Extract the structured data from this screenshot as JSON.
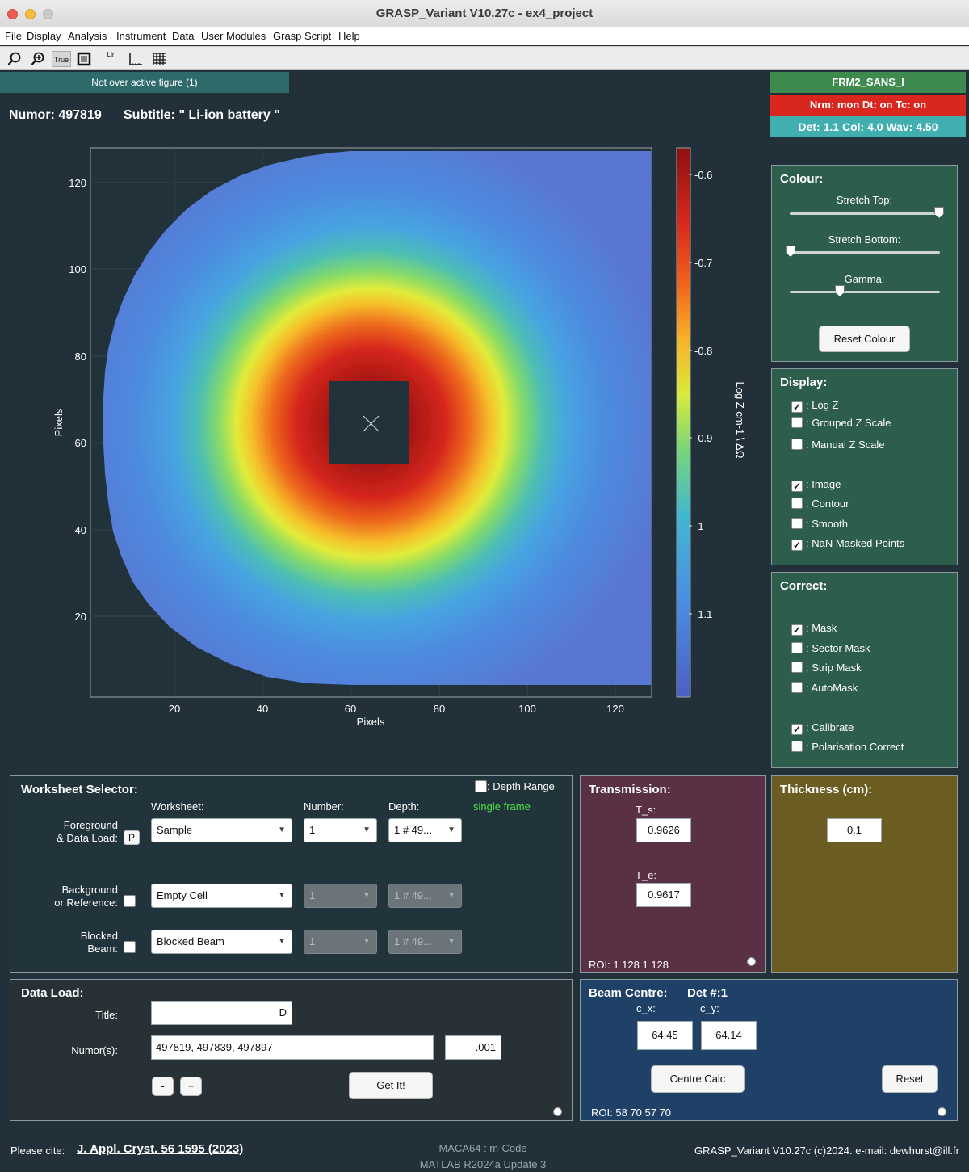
{
  "window": {
    "title": "GRASP_Variant V10.27c - ex4_project"
  },
  "menu": [
    "File",
    "Display",
    "Analysis",
    "Instrument",
    "Data",
    "User Modules",
    "Grasp Script",
    "Help"
  ],
  "toolbar": {
    "icons": [
      "magnifier-icon",
      "zoom-in-icon",
      "true-scale-icon",
      "frame-icon",
      "lin-log-icon",
      "axes-icon",
      "grid-icon"
    ],
    "true_label": "True",
    "lin_label": "Lin"
  },
  "status": "Not over active figure (1)",
  "numor": "Numor: 497819",
  "subtitle": "Subtitle: \" Li-ion battery \"",
  "instrument": {
    "name": "FRM2_SANS_I",
    "nrm": "Nrm: mon  Dt: on Tc: on",
    "det": "Det: 1.1  Col: 4.0  Wav: 4.50",
    "name_color": "#3e8a4f",
    "nrm_color": "#d9271f",
    "det_color": "#41aeb0"
  },
  "plot": {
    "xlabel": "Pixels",
    "ylabel": "Pixels",
    "xticks": [
      "20",
      "40",
      "60",
      "80",
      "100",
      "120"
    ],
    "yticks": [
      "120",
      "100",
      "80",
      "60",
      "40",
      "20"
    ],
    "colorbar_ticks": [
      "-0.6",
      "-0.7",
      "-0.8",
      "-0.9",
      "-1",
      "-1.1"
    ],
    "colorbar_label": "Log Z    cm-1 \\ ΔΩ"
  },
  "chart_data": {
    "type": "heatmap",
    "xlabel": "Pixels",
    "ylabel": "Pixels",
    "xlim": [
      1,
      128
    ],
    "ylim": [
      1,
      128
    ],
    "zlim": [
      -1.2,
      -0.57
    ],
    "z_label": "Log Z    cm-1 \\ ΔΩ",
    "beam_centre": [
      64.45,
      64.14
    ],
    "masked_box": {
      "x": [
        55,
        73
      ],
      "y": [
        55,
        74
      ]
    }
  },
  "colour": {
    "title": "Colour:",
    "stretch_top": "Stretch Top:",
    "stretch_bottom": "Stretch Bottom:",
    "gamma": "Gamma:",
    "reset": "Reset Colour",
    "stretch_top_value": 1.0,
    "stretch_bottom_value": 0.0,
    "gamma_value": 0.33
  },
  "display": {
    "title": "Display:",
    "items": [
      {
        "label": ": Log Z",
        "checked": true
      },
      {
        "label": ": Grouped Z Scale",
        "checked": false
      },
      {
        "label": ": Manual Z Scale",
        "checked": false
      },
      {
        "label": ": Image",
        "checked": true
      },
      {
        "label": ": Contour",
        "checked": false
      },
      {
        "label": ": Smooth",
        "checked": false
      },
      {
        "label": ": NaN Masked Points",
        "checked": true
      }
    ]
  },
  "correct": {
    "title": "Correct:",
    "items": [
      {
        "label": ": Mask",
        "checked": true
      },
      {
        "label": ": Sector Mask",
        "checked": false
      },
      {
        "label": ": Strip Mask",
        "checked": false
      },
      {
        "label": ": AutoMask",
        "checked": false
      },
      {
        "label": ": Calibrate",
        "checked": true
      },
      {
        "label": ": Polarisation Correct",
        "checked": false
      }
    ]
  },
  "worksheet": {
    "title": "Worksheet Selector:",
    "depth_range": ": Depth Range",
    "col_worksheet": "Worksheet:",
    "col_number": "Number:",
    "col_depth": "Depth:",
    "single_frame": "single frame",
    "fg_label_1": "Foreground",
    "fg_label_2": "& Data Load:",
    "p_button": "P",
    "fg_ws": "Sample",
    "fg_num": "1",
    "fg_depth": "1  # 49...",
    "bg_label_1": "Background",
    "bg_label_2": "or Reference:",
    "bg_ws": "Empty Cell",
    "bg_num": "1",
    "bg_depth": "1  # 49...",
    "bb_label_1": "Blocked",
    "bb_label_2": "Beam:",
    "bb_ws": "Blocked Beam",
    "bb_num": "1",
    "bb_depth": "1  # 49..."
  },
  "transmission": {
    "title": "Transmission:",
    "ts_label": "T_s:",
    "ts_value": "0.9626",
    "te_label": "T_e:",
    "te_value": "0.9617",
    "roi": "ROI: 1  128    1  128"
  },
  "thickness": {
    "title": "Thickness (cm):",
    "value": "0.1"
  },
  "data_load": {
    "title": "Data Load:",
    "title_label": "Title:",
    "title_value": "D",
    "numors_label": "Numor(s):",
    "numors_value": "497819, 497839, 497897",
    "step_value": ".001",
    "minus": "-",
    "plus": "+",
    "get_it": "Get It!"
  },
  "beam_centre": {
    "title": "Beam Centre:",
    "det": "Det #:1",
    "cx_label": "c_x:",
    "cy_label": "c_y:",
    "cx": "64.45",
    "cy": "64.14",
    "centre_calc": "Centre Calc",
    "reset": "Reset",
    "roi": "ROI: 58  70  57  70"
  },
  "footer": {
    "please_cite": "Please cite:",
    "citation": "J. Appl. Cryst. 56 1595 (2023)",
    "platform_1": "MACA64 : m-Code",
    "platform_2": "MATLAB R2024a Update 3",
    "version": "GRASP_Variant V10.27c (c)2024.  e-mail: dewhurst@ill.fr"
  }
}
